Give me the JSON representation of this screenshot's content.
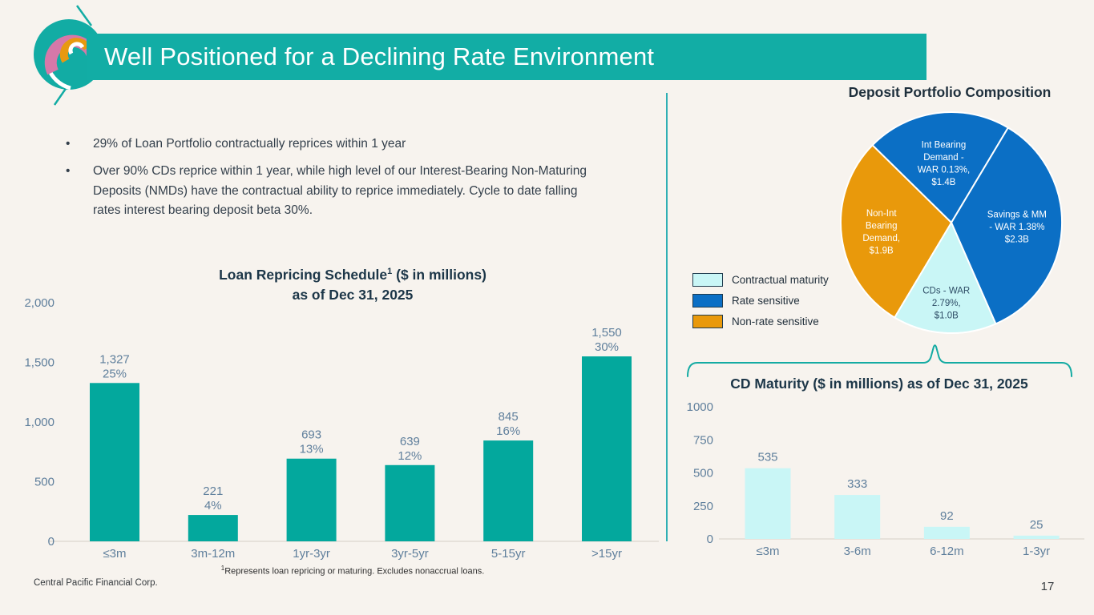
{
  "header": {
    "title": "Well Positioned for a Declining Rate Environment",
    "bar_color": "#12ADA5"
  },
  "bullets": [
    "29% of Loan Portfolio contractually reprices within 1 year",
    "Over 90% CDs reprice within 1 year, while high level of our Interest-Bearing Non-Maturing Deposits (NMDs) have the contractual ability to reprice immediately. Cycle to date falling rates interest bearing deposit beta 30%."
  ],
  "loan_chart_title": {
    "main": "Loan Repricing Schedule",
    "sup": "1",
    "rest": " ($ in millions)",
    "line2": "as of Dec 31, 2025"
  },
  "pie_title": "Deposit Portfolio Composition",
  "cd_title": "CD Maturity ($ in millions) as of Dec 31, 2025",
  "legend": {
    "items": [
      {
        "label": "Contractual maturity",
        "color": "#C9F6F6"
      },
      {
        "label": "Rate sensitive",
        "color": "#0B6FC5"
      },
      {
        "label": "Non-rate sensitive",
        "color": "#E9990B"
      }
    ]
  },
  "footnote": {
    "sup": "1",
    "text": "Represents loan repricing or maturing. Excludes nonaccrual loans."
  },
  "footer": {
    "company": "Central Pacific Financial Corp.",
    "page_number": "17"
  },
  "colors": {
    "accent_teal": "#12ADA5",
    "bar_teal": "#03A89D",
    "pie_blue": "#0B6FC5",
    "pie_cyan": "#C9F6F6",
    "pie_orange": "#E9990B",
    "slate_label": "#5F7F9C",
    "background": "#F7F3EE"
  },
  "chart_data": [
    {
      "id": "loan_repricing",
      "type": "bar",
      "title": "Loan Repricing Schedule¹ ($ in millions) as of Dec 31, 2025",
      "categories": [
        "≤3m",
        "3m-12m",
        "1yr-3yr",
        "3yr-5yr",
        "5-15yr",
        ">15yr"
      ],
      "values": [
        1327,
        221,
        693,
        639,
        845,
        1550
      ],
      "value_labels": [
        "1,327",
        "221",
        "693",
        "639",
        "845",
        "1,550"
      ],
      "pct_labels": [
        "25%",
        "4%",
        "13%",
        "12%",
        "16%",
        "30%"
      ],
      "ylim": [
        0,
        2000
      ],
      "yticks": [
        0,
        500,
        1000,
        1500,
        2000
      ],
      "ytick_labels": [
        "0",
        "500",
        "1,000",
        "1,500",
        "2,000"
      ],
      "bar_color": "#03A89D",
      "grid": false,
      "xlabel": "",
      "ylabel": ""
    },
    {
      "id": "deposit_composition",
      "type": "pie",
      "title": "Deposit Portfolio Composition",
      "units": "$B",
      "start_angle_deg": 314.5,
      "slices": [
        {
          "name": "Int Bearing Demand - WAR 0.13%, $1.4B",
          "label_lines": [
            "Int Bearing",
            "Demand -",
            "WAR 0.13%,",
            "$1.4B"
          ],
          "value": 1.4,
          "color": "#0B6FC5",
          "text_color": "#FFFFFF"
        },
        {
          "name": "Savings & MM - WAR 1.38% $2.3B",
          "label_lines": [
            "Savings & MM",
            "- WAR 1.38%",
            "$2.3B"
          ],
          "value": 2.3,
          "color": "#0B6FC5",
          "text_color": "#FFFFFF"
        },
        {
          "name": "CDs - WAR 2.79%, $1.0B",
          "label_lines": [
            "CDs - WAR",
            "2.79%,",
            "$1.0B"
          ],
          "value": 1.0,
          "color": "#C9F6F6",
          "text_color": "#2E4D66"
        },
        {
          "name": "Non-Int Bearing Demand, $1.9B",
          "label_lines": [
            "Non-Int",
            "Bearing",
            "Demand,",
            "$1.9B"
          ],
          "value": 1.9,
          "color": "#E9990B",
          "text_color": "#FFFFFF"
        }
      ],
      "legend_position": "left"
    },
    {
      "id": "cd_maturity",
      "type": "bar",
      "title": "CD Maturity ($ in millions) as of Dec 31, 2025",
      "categories": [
        "≤3m",
        "3-6m",
        "6-12m",
        "1-3yr"
      ],
      "values": [
        535,
        333,
        92,
        25
      ],
      "value_labels": [
        "535",
        "333",
        "92",
        "25"
      ],
      "ylim": [
        0,
        1000
      ],
      "yticks": [
        0,
        250,
        500,
        750,
        1000
      ],
      "ytick_labels": [
        "0",
        "250",
        "500",
        "750",
        "1000"
      ],
      "bar_color": "#C9F6F6",
      "grid": false,
      "xlabel": "",
      "ylabel": ""
    }
  ]
}
